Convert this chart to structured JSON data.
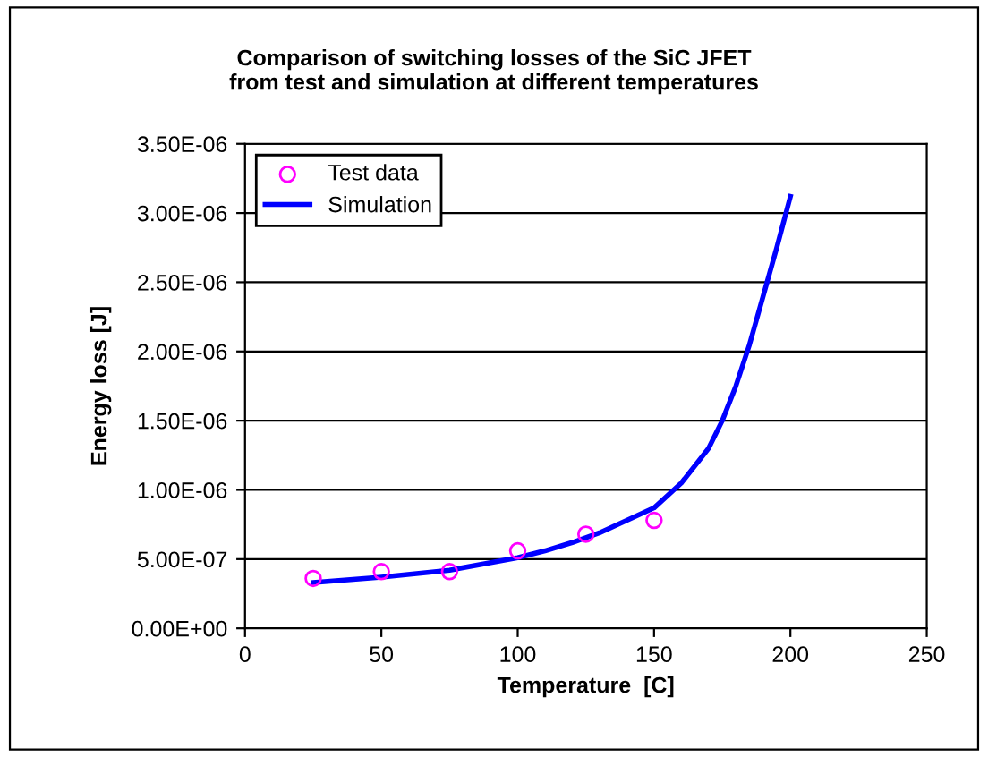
{
  "chart_data": {
    "type": "scatter",
    "title": "Comparison of switching losses of the SiC JFET\nfrom test and simulation at different temperatures",
    "xlabel": "Temperature  [C]",
    "ylabel": "Energy loss [J]",
    "series": [
      {
        "name": "Test data",
        "color": "#ff00ff",
        "marker": "circle",
        "x": [
          25,
          50,
          75,
          100,
          125,
          150
        ],
        "values": [
          3.6e-07,
          4.1e-07,
          4.1e-07,
          5.6e-07,
          6.8e-07,
          7.8e-07
        ]
      },
      {
        "name": "Simulation",
        "type": "line",
        "color": "#0000ff",
        "marker": "none",
        "x": [
          25,
          50,
          75,
          100,
          110,
          120,
          130,
          140,
          150,
          160,
          170,
          175,
          180,
          185,
          190,
          195,
          200
        ],
        "values": [
          3.3e-07,
          3.7e-07,
          4.2e-07,
          5.1e-07,
          5.6e-07,
          6.2e-07,
          6.9e-07,
          7.8e-07,
          8.7e-07,
          1.05e-06,
          1.3e-06,
          1.5e-06,
          1.75e-06,
          2.05e-06,
          2.4e-06,
          2.75e-06,
          3.12e-06
        ]
      }
    ],
    "xlim": [
      0,
      250
    ],
    "xticks": [
      0,
      50,
      100,
      150,
      200,
      250
    ],
    "ylim": [
      0,
      3.5e-06
    ],
    "yticks": [
      {
        "value": 0,
        "label": "0.00E+00"
      },
      {
        "value": 5e-07,
        "label": "5.00E-07"
      },
      {
        "value": 1e-06,
        "label": "1.00E-06"
      },
      {
        "value": 1.5e-06,
        "label": "1.50E-06"
      },
      {
        "value": 2e-06,
        "label": "2.00E-06"
      },
      {
        "value": 2.5e-06,
        "label": "2.50E-06"
      },
      {
        "value": 3e-06,
        "label": "3.00E-06"
      },
      {
        "value": 3.5e-06,
        "label": "3.50E-06"
      }
    ],
    "grid": "y",
    "legend": "top left"
  }
}
